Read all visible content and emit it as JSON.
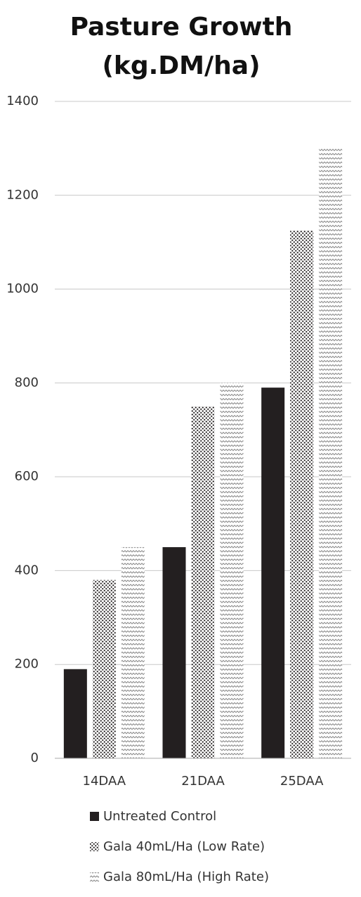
{
  "chart_data": {
    "type": "bar",
    "title": [
      "Pasture Growth",
      "(kg.DM/ha)"
    ],
    "categories": [
      "14DAA",
      "21DAA",
      "25DAA"
    ],
    "series": [
      {
        "name": "Untreated Control",
        "color": "#231f20",
        "pattern": "solid",
        "values": [
          190,
          450,
          790
        ]
      },
      {
        "name": "Gala 40mL/Ha (Low Rate)",
        "color": "#231f20",
        "pattern": "dots",
        "values": [
          380,
          750,
          1125
        ]
      },
      {
        "name": "Gala 80mL/Ha (High Rate)",
        "color": "#8a8a8a",
        "pattern": "zigzag",
        "values": [
          450,
          800,
          1300
        ]
      }
    ],
    "ylim": [
      0,
      1400
    ],
    "yticks": [
      0,
      200,
      400,
      600,
      800,
      1000,
      1200,
      1400
    ],
    "grid": true,
    "legend": "bottom"
  }
}
